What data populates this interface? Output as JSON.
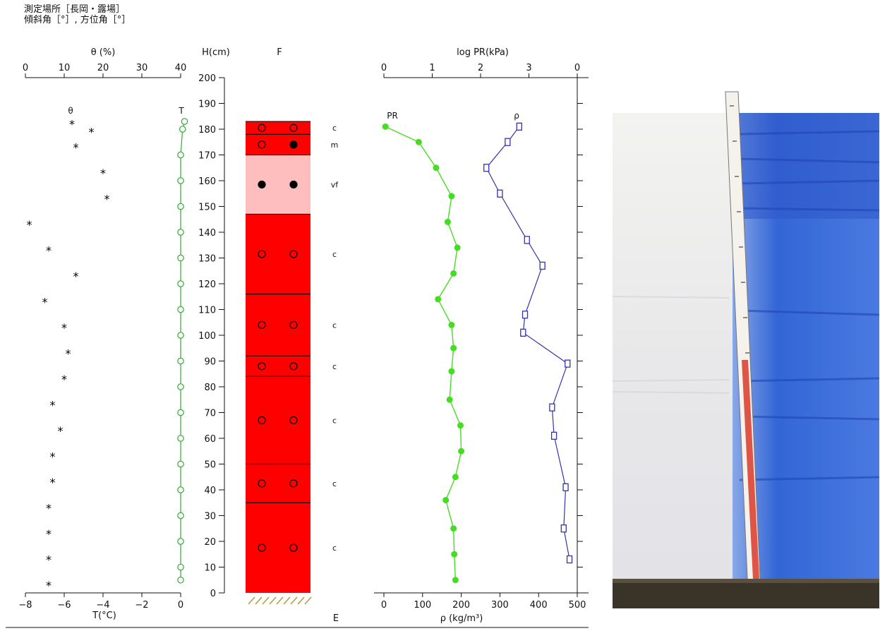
{
  "header": {
    "line1": "測定場所［長岡・露場］",
    "line2": "傾斜角［°］, 方位角［°］"
  },
  "chart_data": [
    {
      "type": "scatter",
      "panel": "temperature-moisture",
      "top_axis": {
        "label": "θ (%)",
        "ticks": [
          "0",
          "10",
          "20",
          "30",
          "40"
        ],
        "range": [
          0,
          40
        ]
      },
      "bottom_axis": {
        "label": "T(°C)",
        "ticks": [
          "−8",
          "−6",
          "−4",
          "−2",
          "0"
        ],
        "range": [
          -8,
          0
        ]
      },
      "y_axis": {
        "label": "H(cm)",
        "range": [
          0,
          200
        ],
        "ticks": [
          "0",
          "10",
          "20",
          "30",
          "40",
          "50",
          "60",
          "70",
          "80",
          "90",
          "100",
          "110",
          "120",
          "130",
          "140",
          "150",
          "160",
          "170",
          "180",
          "190",
          "200"
        ]
      },
      "series": [
        {
          "name": "θ",
          "axis": "top",
          "color": "#000000",
          "marker": "star",
          "points": [
            [
              12,
              182
            ],
            [
              17,
              179
            ],
            [
              13,
              173
            ],
            [
              20,
              163
            ],
            [
              21,
              153
            ],
            [
              1,
              143
            ],
            [
              6,
              133
            ],
            [
              13,
              123
            ],
            [
              5,
              113
            ],
            [
              10,
              103
            ],
            [
              11,
              93
            ],
            [
              10,
              83
            ],
            [
              7,
              73
            ],
            [
              9,
              63
            ],
            [
              7,
              53
            ],
            [
              7,
              43
            ],
            [
              6,
              33
            ],
            [
              6,
              23
            ],
            [
              6,
              13
            ],
            [
              6,
              3
            ]
          ]
        },
        {
          "name": "T",
          "axis": "bottom",
          "color": "#33aa33",
          "marker": "open-circle",
          "points": [
            [
              0.2,
              183
            ],
            [
              0.1,
              180
            ],
            [
              0,
              170
            ],
            [
              0,
              160
            ],
            [
              0,
              150
            ],
            [
              0,
              140
            ],
            [
              0,
              130
            ],
            [
              0,
              120
            ],
            [
              0,
              110
            ],
            [
              0,
              100
            ],
            [
              0,
              90
            ],
            [
              0,
              80
            ],
            [
              0,
              70
            ],
            [
              0,
              60
            ],
            [
              0,
              50
            ],
            [
              0,
              40
            ],
            [
              0,
              30
            ],
            [
              0,
              20
            ],
            [
              0,
              10
            ],
            [
              0,
              5
            ]
          ]
        }
      ]
    },
    {
      "type": "table",
      "panel": "snow-layers",
      "title": "F",
      "footer": "E",
      "layers": [
        {
          "bottom": 178,
          "top": 183,
          "color": "#ff0000",
          "grain": "c",
          "symbols": [
            "open",
            "open"
          ]
        },
        {
          "bottom": 170,
          "top": 178,
          "color": "#ff0000",
          "grain": "m",
          "symbols": [
            "open",
            "filled"
          ]
        },
        {
          "bottom": 147,
          "top": 170,
          "color": "#ffbebe",
          "grain": "vf",
          "symbols": [
            "filled",
            "filled"
          ]
        },
        {
          "bottom": 116,
          "top": 147,
          "color": "#ff0000",
          "grain": "c",
          "symbols": [
            "open",
            "open"
          ]
        },
        {
          "bottom": 92,
          "top": 116,
          "color": "#ff0000",
          "grain": "c",
          "symbols": [
            "open",
            "open"
          ]
        },
        {
          "bottom": 84,
          "top": 92,
          "color": "#ff0000",
          "grain": "c",
          "symbols": [
            "open",
            "open"
          ]
        },
        {
          "bottom": 50,
          "top": 84,
          "color": "#ff0000",
          "grain": "c",
          "symbols": [
            "open",
            "open"
          ]
        },
        {
          "bottom": 35,
          "top": 50,
          "color": "#ff0000",
          "grain": "c",
          "symbols": [
            "open",
            "open"
          ]
        },
        {
          "bottom": 0,
          "top": 35,
          "color": "#ff0000",
          "grain": "c",
          "symbols": [
            "open",
            "open"
          ]
        }
      ],
      "ground_hatch_color": "#b8963c"
    },
    {
      "type": "line",
      "panel": "hardness-density",
      "top_axis": {
        "label": "log PR(kPa)",
        "ticks": [
          "0",
          "1",
          "2",
          "3",
          "0"
        ],
        "range": [
          0,
          5
        ]
      },
      "bottom_axis": {
        "label": "ρ (kg/m³)",
        "ticks": [
          "0",
          "100",
          "200",
          "300",
          "400",
          "500"
        ],
        "range": [
          0,
          500
        ]
      },
      "series": [
        {
          "name": "PR",
          "axis": "top",
          "color": "#44dd22",
          "marker": "filled-circle",
          "points": [
            [
              0.04,
              181
            ],
            [
              0.9,
              175
            ],
            [
              1.35,
              165
            ],
            [
              1.75,
              154
            ],
            [
              1.65,
              144
            ],
            [
              1.9,
              134
            ],
            [
              1.8,
              124
            ],
            [
              1.4,
              114
            ],
            [
              1.75,
              104
            ],
            [
              1.8,
              95
            ],
            [
              1.75,
              86
            ],
            [
              1.7,
              75
            ],
            [
              1.98,
              65
            ],
            [
              2.0,
              55
            ],
            [
              1.85,
              45
            ],
            [
              1.6,
              36
            ],
            [
              1.8,
              25
            ],
            [
              1.82,
              15
            ],
            [
              1.85,
              5
            ]
          ]
        },
        {
          "name": "ρ",
          "axis": "bottom",
          "color": "#3333aa",
          "marker": "open-square",
          "points": [
            [
              350,
              181
            ],
            [
              320,
              175
            ],
            [
              265,
              165
            ],
            [
              300,
              155
            ],
            [
              370,
              137
            ],
            [
              410,
              127
            ],
            [
              365,
              108
            ],
            [
              360,
              101
            ],
            [
              475,
              89
            ],
            [
              435,
              72
            ],
            [
              440,
              61
            ],
            [
              470,
              41
            ],
            [
              465,
              25
            ],
            [
              480,
              13
            ]
          ]
        }
      ]
    }
  ]
}
